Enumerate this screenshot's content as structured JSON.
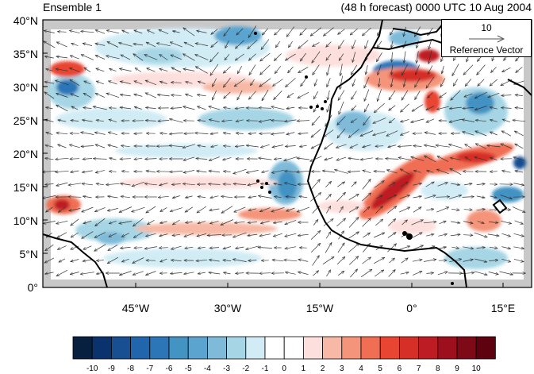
{
  "header": {
    "left_title": "Ensemble 1",
    "right_title": "(48 h forecast) 0000 UTC 10 Aug 2004"
  },
  "axes": {
    "y_ticks": [
      "40°N",
      "35°N",
      "30°N",
      "25°N",
      "20°N",
      "15°N",
      "10°N",
      "5°N",
      "0°"
    ],
    "x_ticks": [
      "45°W",
      "30°W",
      "15°W",
      "0°",
      "15°E"
    ]
  },
  "reference_vector": {
    "magnitude": "10",
    "label": "Reference Vector"
  },
  "colorbar": {
    "labels": [
      "-10",
      "-9",
      "-8",
      "-7",
      "-6",
      "-5",
      "-4",
      "-3",
      "-2",
      "-1",
      "0",
      "1",
      "2",
      "3",
      "4",
      "5",
      "6",
      "7",
      "8",
      "9",
      "10"
    ],
    "colors": [
      "#08203f",
      "#0a326d",
      "#184e92",
      "#2166ac",
      "#2c76b8",
      "#4393c3",
      "#5aa4cf",
      "#7fbbd9",
      "#a6d6e5",
      "#d1ecf5",
      "#ffffff",
      "#ffffff",
      "#fde0dd",
      "#f7b9a6",
      "#f4947a",
      "#f06e53",
      "#e84533",
      "#d62f27",
      "#bd1c24",
      "#9e0f1d",
      "#7f0a17",
      "#5e0210"
    ]
  },
  "map": {
    "extent": {
      "lon_min": -60,
      "lon_max": 20,
      "lat_min": 0,
      "lat_max": 40
    },
    "missing_color": "#c8c8c8",
    "coastline_color": "#000000"
  }
}
